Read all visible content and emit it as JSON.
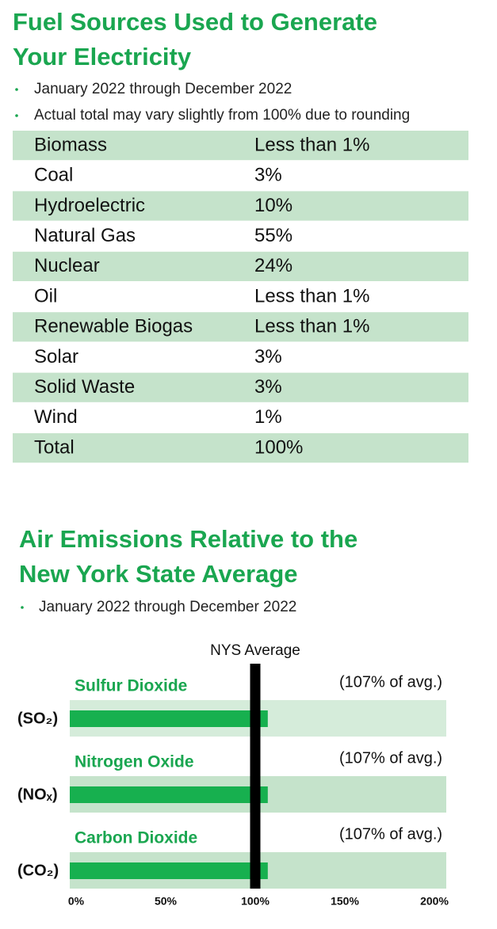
{
  "fuel_sources": {
    "title_lines": [
      "Fuel Sources Used to Generate",
      "Your Electricity"
    ],
    "notes": [
      "January 2022 through December 2022",
      "Actual total may vary slightly from 100% due to rounding"
    ],
    "rows": [
      [
        "Biomass",
        "Less than 1%"
      ],
      [
        "Coal",
        "3%"
      ],
      [
        "Hydroelectric",
        "10%"
      ],
      [
        "Natural Gas",
        "55%"
      ],
      [
        "Nuclear",
        "24%"
      ],
      [
        "Oil",
        "Less than 1%"
      ],
      [
        "Renewable Biogas",
        "Less than 1%"
      ],
      [
        "Solar",
        "3%"
      ],
      [
        "Solid Waste",
        "3%"
      ],
      [
        "Wind",
        "1%"
      ],
      [
        "Total",
        "100%"
      ]
    ]
  },
  "chart_data": {
    "type": "bar",
    "title_lines": [
      "Air Emissions Relative to the",
      "New York State Average"
    ],
    "notes": [
      "January 2022 through December 2022"
    ],
    "categories": [
      "Sulfur Dioxide",
      "Nitrogen Oxide",
      "Carbon Dioxide"
    ],
    "category_codes": [
      "(SO₂)",
      "(NOₓ)",
      "(CO₂)"
    ],
    "values": [
      107,
      107,
      107
    ],
    "value_labels": [
      "(107% of avg.)",
      "(107% of avg.)",
      "(107% of avg.)"
    ],
    "color": "#17b04f",
    "xlim": [
      0,
      200
    ],
    "xticks": [
      {
        "value": 0,
        "label": "0%"
      },
      {
        "value": 50,
        "label": "50%"
      },
      {
        "value": 100,
        "label": "100%"
      },
      {
        "value": 150,
        "label": "150%"
      },
      {
        "value": 200,
        "label": "200%"
      }
    ],
    "reference": {
      "value": 100,
      "label": "NYS Average"
    }
  }
}
